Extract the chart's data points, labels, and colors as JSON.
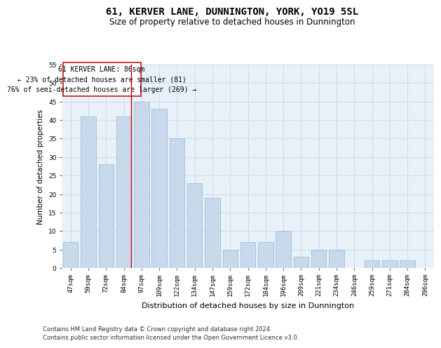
{
  "title": "61, KERVER LANE, DUNNINGTON, YORK, YO19 5SL",
  "subtitle": "Size of property relative to detached houses in Dunnington",
  "xlabel": "Distribution of detached houses by size in Dunnington",
  "ylabel": "Number of detached properties",
  "categories": [
    "47sqm",
    "59sqm",
    "72sqm",
    "84sqm",
    "97sqm",
    "109sqm",
    "122sqm",
    "134sqm",
    "147sqm",
    "159sqm",
    "172sqm",
    "184sqm",
    "196sqm",
    "209sqm",
    "221sqm",
    "234sqm",
    "246sqm",
    "259sqm",
    "271sqm",
    "284sqm",
    "296sqm"
  ],
  "values": [
    7,
    41,
    28,
    41,
    45,
    43,
    35,
    23,
    19,
    5,
    7,
    7,
    10,
    3,
    5,
    5,
    0,
    2,
    2,
    2,
    0
  ],
  "bar_color": "#c8d9ec",
  "bar_edgecolor": "#92b8d8",
  "grid_color": "#c8d8e8",
  "background_color": "#e8f0f8",
  "annotation_text": "61 KERVER LANE: 86sqm\n← 23% of detached houses are smaller (81)\n76% of semi-detached houses are larger (269) →",
  "annotation_box_edgecolor": "#cc0000",
  "vline_color": "#cc0000",
  "ylim": [
    0,
    55
  ],
  "yticks": [
    0,
    5,
    10,
    15,
    20,
    25,
    30,
    35,
    40,
    45,
    50,
    55
  ],
  "footer_line1": "Contains HM Land Registry data © Crown copyright and database right 2024.",
  "footer_line2": "Contains public sector information licensed under the Open Government Licence v3.0.",
  "title_fontsize": 10,
  "subtitle_fontsize": 8.5,
  "xlabel_fontsize": 8,
  "ylabel_fontsize": 7.5,
  "tick_fontsize": 6.5,
  "footer_fontsize": 6,
  "ann_fontsize": 7
}
